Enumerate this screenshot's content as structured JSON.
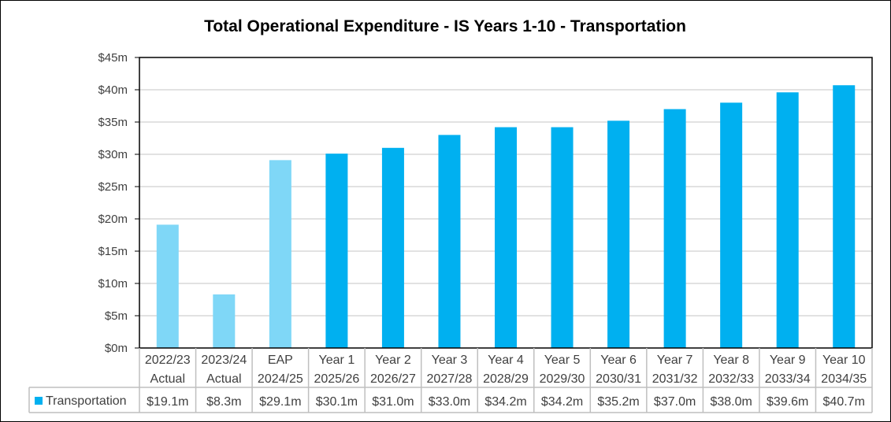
{
  "chart_data": {
    "type": "bar",
    "title": "Total Operational Expenditure - IS Years 1-10 - Transportation",
    "xlabel": "",
    "ylabel": "",
    "ylim": [
      0,
      45
    ],
    "yticks": [
      "$0m",
      "$5m",
      "$10m",
      "$15m",
      "$20m",
      "$25m",
      "$30m",
      "$35m",
      "$40m",
      "$45m"
    ],
    "categories": [
      [
        "2022/23",
        "Actual"
      ],
      [
        "2023/24",
        "Actual"
      ],
      [
        "EAP",
        "2024/25"
      ],
      [
        "Year 1",
        "2025/26"
      ],
      [
        "Year 2",
        "2026/27"
      ],
      [
        "Year 3",
        "2027/28"
      ],
      [
        "Year 4",
        "2028/29"
      ],
      [
        "Year 5",
        "2029/30"
      ],
      [
        "Year 6",
        "2030/31"
      ],
      [
        "Year 7",
        "2031/32"
      ],
      [
        "Year 8",
        "2032/33"
      ],
      [
        "Year 9",
        "2033/34"
      ],
      [
        "Year 10",
        "2034/35"
      ]
    ],
    "series": [
      {
        "name": "Transportation",
        "values": [
          19.1,
          8.3,
          29.1,
          30.1,
          31.0,
          33.0,
          34.2,
          34.2,
          35.2,
          37.0,
          38.0,
          39.6,
          40.7
        ],
        "labels": [
          "$19.1m",
          "$8.3m",
          "$29.1m",
          "$30.1m",
          "$31.0m",
          "$33.0m",
          "$34.2m",
          "$34.2m",
          "$35.2m",
          "$37.0m",
          "$38.0m",
          "$39.6m",
          "$40.7m"
        ],
        "color": "#00b0f0",
        "light_color": "#7fd7f7",
        "light_categories_count": 3
      }
    ],
    "grid": true,
    "legend": "data-table"
  }
}
